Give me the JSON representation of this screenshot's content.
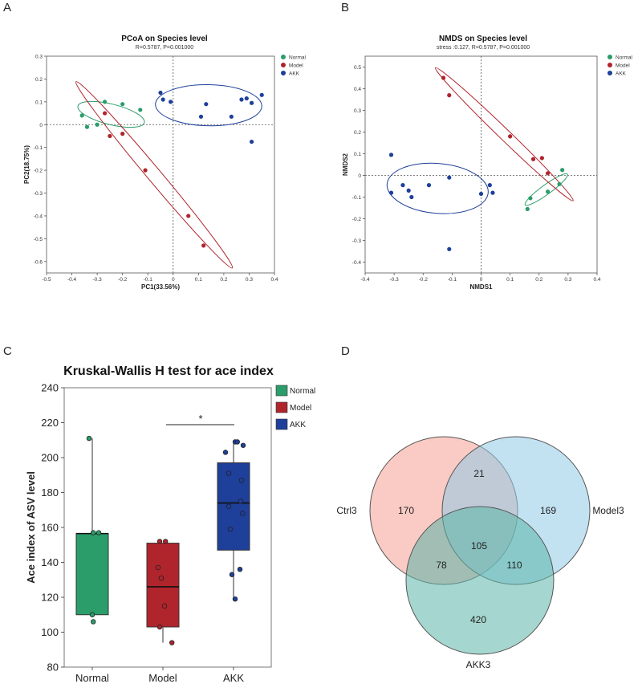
{
  "panel_labels": [
    "A",
    "B",
    "C",
    "D"
  ],
  "colors": {
    "Normal": "#2a9d6a",
    "Model": "#b0242c",
    "AKK": "#1e3f9a"
  },
  "chart_data": [
    {
      "id": "A",
      "type": "scatter",
      "title": "PCoA on Species level",
      "subtitle": "R=0.5787, P=0.001000",
      "xlabel": "PC1(33.56%)",
      "ylabel": "PC2(18.75%)",
      "xlim": [
        -0.5,
        0.4
      ],
      "ylim": [
        -0.65,
        0.3
      ],
      "xticks": [
        -0.5,
        -0.4,
        -0.3,
        -0.2,
        -0.1,
        0,
        0.1,
        0.2,
        0.3,
        0.4
      ],
      "xtick_labels": [
        "-0.5",
        "-0.4",
        "-0.3",
        "-0.2",
        "-0.1",
        "0",
        "0.1",
        "0.2",
        "0.3",
        "0.4"
      ],
      "yticks": [
        -0.6,
        -0.5,
        -0.4,
        -0.3,
        -0.2,
        -0.1,
        0,
        0.1,
        0.2,
        0.3
      ],
      "ytick_labels": [
        "-0.6",
        "-0.5",
        "-0.4",
        "-0.3",
        "-0.2",
        "-0.1",
        "0",
        "0.1",
        "0.2",
        "0.3"
      ],
      "legend": [
        "Normal",
        "Model",
        "AKK"
      ],
      "series": [
        {
          "name": "Normal",
          "points": [
            [
              -0.36,
              0.04
            ],
            [
              -0.34,
              -0.01
            ],
            [
              -0.27,
              0.1
            ],
            [
              -0.2,
              0.09
            ],
            [
              -0.13,
              0.065
            ],
            [
              -0.3,
              0.0
            ]
          ]
        },
        {
          "name": "Model",
          "points": [
            [
              -0.27,
              0.05
            ],
            [
              -0.25,
              -0.05
            ],
            [
              -0.2,
              -0.04
            ],
            [
              -0.11,
              -0.2
            ],
            [
              0.06,
              -0.4
            ],
            [
              0.12,
              -0.53
            ]
          ]
        },
        {
          "name": "AKK",
          "points": [
            [
              -0.05,
              0.14
            ],
            [
              -0.04,
              0.11
            ],
            [
              -0.01,
              0.1
            ],
            [
              0.11,
              0.035
            ],
            [
              0.13,
              0.09
            ],
            [
              0.23,
              0.035
            ],
            [
              0.27,
              0.11
            ],
            [
              0.29,
              0.115
            ],
            [
              0.31,
              0.095
            ],
            [
              0.35,
              0.13
            ],
            [
              0.31,
              -0.075
            ]
          ]
        }
      ],
      "ellipses": [
        {
          "group": "Normal",
          "cx": -0.245,
          "cy": 0.045,
          "rx": 0.135,
          "ry": 0.045,
          "angle_deg": 14
        },
        {
          "group": "Model",
          "cx": -0.075,
          "cy": -0.22,
          "rx": 0.48,
          "ry": 0.03,
          "angle_deg": 50
        },
        {
          "group": "AKK",
          "cx": 0.14,
          "cy": 0.085,
          "rx": 0.21,
          "ry": 0.09,
          "angle_deg": 1
        }
      ]
    },
    {
      "id": "B",
      "type": "scatter",
      "title": "NMDS on Species level",
      "subtitle": "stress :0.127, R=0.5787, P=0.001000",
      "xlabel": "NMDS1",
      "ylabel": "NMDS2",
      "xlim": [
        -0.4,
        0.4
      ],
      "ylim": [
        -0.45,
        0.55
      ],
      "xticks": [
        -0.4,
        -0.3,
        -0.2,
        -0.1,
        0,
        0.1,
        0.2,
        0.3,
        0.4
      ],
      "xtick_labels": [
        "-0.4",
        "-0.3",
        "-0.2",
        "-0.1",
        "0",
        "0.1",
        "0.2",
        "0.3",
        "0.4"
      ],
      "yticks": [
        -0.4,
        -0.3,
        -0.2,
        -0.1,
        0,
        0.1,
        0.2,
        0.3,
        0.4,
        0.5
      ],
      "ytick_labels": [
        "-0.4",
        "-0.3",
        "-0.2",
        "-0.1",
        "0",
        "0.1",
        "0.2",
        "0.3",
        "0.4",
        "0.5"
      ],
      "legend": [
        "Normal",
        "Model",
        "AKK"
      ],
      "series": [
        {
          "name": "Normal",
          "points": [
            [
              0.28,
              0.025
            ],
            [
              0.27,
              -0.04
            ],
            [
              0.23,
              -0.075
            ],
            [
              0.17,
              -0.105
            ],
            [
              0.16,
              -0.155
            ]
          ]
        },
        {
          "name": "Model",
          "points": [
            [
              -0.13,
              0.45
            ],
            [
              -0.11,
              0.37
            ],
            [
              0.1,
              0.18
            ],
            [
              0.18,
              0.075
            ],
            [
              0.21,
              0.08
            ],
            [
              0.23,
              0.01
            ]
          ]
        },
        {
          "name": "AKK",
          "points": [
            [
              -0.31,
              0.095
            ],
            [
              -0.31,
              -0.08
            ],
            [
              -0.27,
              -0.045
            ],
            [
              -0.25,
              -0.07
            ],
            [
              -0.24,
              -0.1
            ],
            [
              -0.18,
              -0.045
            ],
            [
              -0.11,
              -0.01
            ],
            [
              -0.11,
              -0.34
            ],
            [
              0.0,
              -0.085
            ],
            [
              0.03,
              -0.045
            ],
            [
              0.04,
              -0.08
            ]
          ]
        }
      ],
      "ellipses": [
        {
          "group": "Normal",
          "cx": 0.225,
          "cy": -0.065,
          "rx": 0.09,
          "ry": 0.022,
          "angle_deg": -36
        },
        {
          "group": "Model",
          "cx": 0.08,
          "cy": 0.19,
          "rx": 0.33,
          "ry": 0.025,
          "angle_deg": 44
        },
        {
          "group": "AKK",
          "cx": -0.15,
          "cy": -0.06,
          "rx": 0.175,
          "ry": 0.115,
          "angle_deg": 5
        }
      ]
    },
    {
      "id": "C",
      "type": "box",
      "title": "Kruskal-Wallis H test for ace index",
      "xlabel": "",
      "ylabel": "Ace index of ASV level",
      "ylim": [
        80,
        240
      ],
      "yticks": [
        80,
        100,
        120,
        140,
        160,
        180,
        200,
        220,
        240
      ],
      "ytick_labels": [
        "80",
        "100",
        "120",
        "140",
        "160",
        "180",
        "200",
        "220",
        "240"
      ],
      "categories": [
        "Normal",
        "Model",
        "AKK"
      ],
      "legend": [
        "Normal",
        "Model",
        "AKK"
      ],
      "significance": {
        "from": "Model",
        "to": "AKK",
        "label": "*"
      },
      "boxes": [
        {
          "name": "Normal",
          "q1": 110,
          "median": 156.5,
          "q3": 156.5,
          "whisker_low": 110,
          "whisker_high": 211,
          "points": [
            [
              -0.1,
              211
            ],
            [
              0.03,
              157
            ],
            [
              0.2,
              157
            ],
            [
              0.0,
              110
            ],
            [
              0.03,
              106
            ]
          ]
        },
        {
          "name": "Model",
          "q1": 103,
          "median": 126,
          "q3": 151,
          "whisker_low": 94,
          "whisker_high": 151,
          "points": [
            [
              -0.1,
              152
            ],
            [
              0.08,
              152
            ],
            [
              -0.15,
              137
            ],
            [
              -0.05,
              131
            ],
            [
              0.05,
              115
            ],
            [
              -0.1,
              103
            ],
            [
              0.28,
              94
            ]
          ]
        },
        {
          "name": "AKK",
          "q1": 147,
          "median": 174,
          "q3": 197,
          "whisker_low": 119,
          "whisker_high": 209,
          "points": [
            [
              0.05,
              209
            ],
            [
              0.12,
              209
            ],
            [
              0.3,
              207
            ],
            [
              -0.15,
              191
            ],
            [
              -0.25,
              203
            ],
            [
              0.25,
              187
            ],
            [
              0.22,
              175
            ],
            [
              0.28,
              168
            ],
            [
              -0.15,
              172
            ],
            [
              -0.1,
              159
            ],
            [
              0.2,
              136
            ],
            [
              -0.05,
              133
            ],
            [
              0.05,
              119
            ]
          ]
        }
      ]
    },
    {
      "id": "D",
      "type": "venn",
      "sets": [
        "Ctrl3",
        "Model3",
        "AKK3"
      ],
      "regions": [
        {
          "key": "ctrl_only",
          "value": "170"
        },
        {
          "key": "model_only",
          "value": "169"
        },
        {
          "key": "akk_only",
          "value": "420"
        },
        {
          "key": "ctrl_model",
          "value": "21"
        },
        {
          "key": "ctrl_akk",
          "value": "78"
        },
        {
          "key": "model_akk",
          "value": "110"
        },
        {
          "key": "all",
          "value": "105"
        }
      ],
      "set_colors": [
        "#f4a093",
        "#8fcbe5",
        "#5bb5a8"
      ]
    }
  ]
}
